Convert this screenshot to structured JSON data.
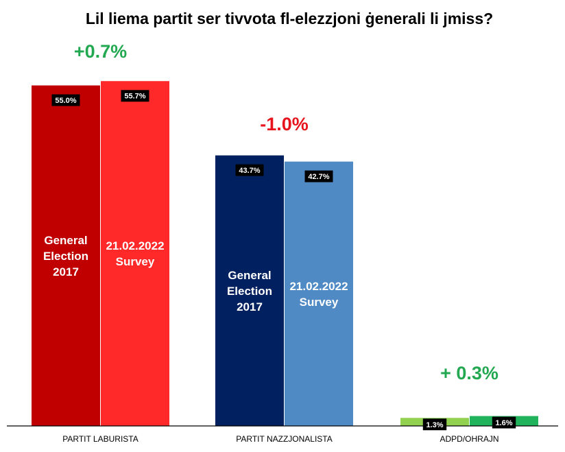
{
  "chart_data": {
    "type": "bar",
    "title": "Lil liema partit ser tivvota fl-elezzjoni ġenerali li jmiss?",
    "categories": [
      "PARTIT LABURISTA",
      "PARTIT NAZZJONALISTA",
      "ADPD/OHRAJN"
    ],
    "series": [
      {
        "name": "General Election 2017",
        "values": [
          55.0,
          43.7,
          1.3
        ],
        "labels": [
          "55.0%",
          "43.7%",
          "1.3%"
        ],
        "colors": [
          "#c00000",
          "#002060",
          "#92d050"
        ]
      },
      {
        "name": "21.02.2022 Survey",
        "values": [
          55.7,
          42.7,
          1.6
        ],
        "labels": [
          "55.7%",
          "42.7%",
          "1.6%"
        ],
        "colors": [
          "#ff2929",
          "#4f8ac4",
          "#21b35b"
        ]
      }
    ],
    "inner_labels": [
      {
        "lines": [
          "General",
          "Election",
          "2017"
        ]
      },
      {
        "lines": [
          "21.02.2022",
          "Survey"
        ]
      }
    ],
    "changes": [
      {
        "text": "+0.7%",
        "color": "#22a850"
      },
      {
        "text": "-1.0%",
        "color": "#e8141d"
      },
      {
        "text": "+ 0.3%",
        "color": "#22a850"
      }
    ],
    "ylim": [
      0,
      57.5
    ],
    "grid": false,
    "legend": "none"
  }
}
